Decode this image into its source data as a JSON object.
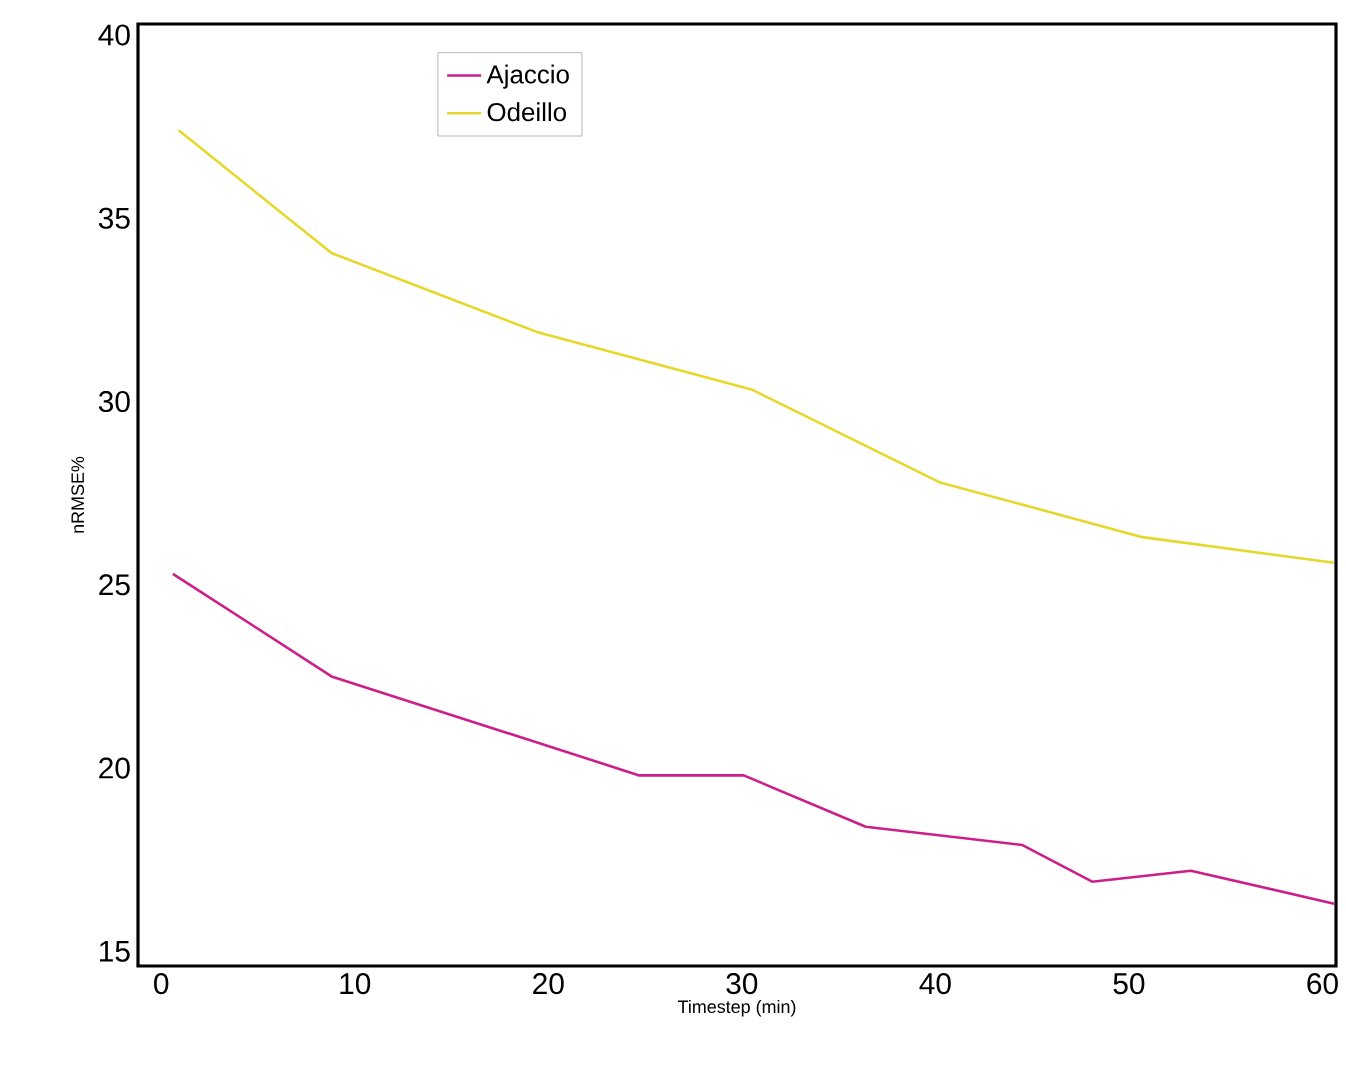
{
  "chart_data": {
    "type": "line",
    "xlabel": "Timestep (min)",
    "ylabel": "nRMSE%",
    "xlim": [
      -1.2,
      60.7
    ],
    "ylim": [
      14.6,
      40.3
    ],
    "xticks": [
      0,
      10,
      20,
      30,
      40,
      50,
      60
    ],
    "yticks": [
      15,
      20,
      25,
      30,
      35,
      40
    ],
    "grid": false,
    "legend": "top left",
    "marker": "none",
    "line_style": "solid",
    "series": [
      {
        "name": "Ajaccio",
        "color": "#cc1f8a",
        "x": [
          0.6,
          8.8,
          24.7,
          30.1,
          36.4,
          44.5,
          48.1,
          53.2,
          60.6
        ],
        "values": [
          25.3,
          22.5,
          19.8,
          19.8,
          18.4,
          17.9,
          16.9,
          17.2,
          16.3
        ]
      },
      {
        "name": "Odeillo",
        "color": "#e6d82a",
        "x": [
          0.9,
          8.8,
          19.4,
          30.5,
          40.2,
          50.7,
          60.6
        ],
        "values": [
          37.4,
          34.05,
          31.9,
          30.33,
          27.8,
          26.3,
          25.6
        ]
      }
    ]
  }
}
